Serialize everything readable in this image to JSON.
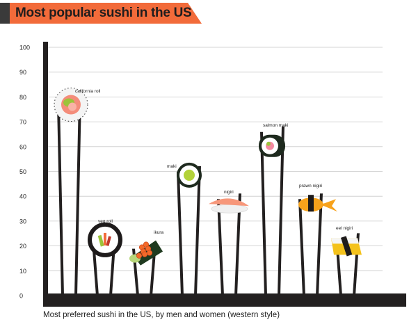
{
  "title": "Most popular sushi in the US",
  "caption": "Most preferred sushi in the US, by men and women (western style)",
  "colors": {
    "banner": "#f26b3a",
    "banner_dark": "#3a3a3a",
    "chopstick": "#232020",
    "grid": "#c9c9c9",
    "axis_text": "#222222"
  },
  "chart_data": {
    "type": "bar",
    "title": "Most popular sushi in the US",
    "xlabel": "",
    "ylabel": "",
    "ylim": [
      0,
      100
    ],
    "yticks": [
      0,
      10,
      20,
      30,
      40,
      50,
      60,
      70,
      80,
      90,
      100
    ],
    "grid": true,
    "categories": [
      "california roll",
      "veg roll",
      "ikura",
      "maki",
      "nigiri",
      "salmon maki",
      "prawn nigiri",
      "eel nigiri"
    ],
    "values": [
      78,
      23,
      20,
      51,
      40,
      67,
      40,
      24
    ],
    "icons": [
      "california-roll-icon",
      "veg-roll-icon",
      "ikura-icon",
      "maki-icon",
      "nigiri-icon",
      "salmon-maki-icon",
      "prawn-nigiri-icon",
      "eel-nigiri-icon"
    ]
  }
}
